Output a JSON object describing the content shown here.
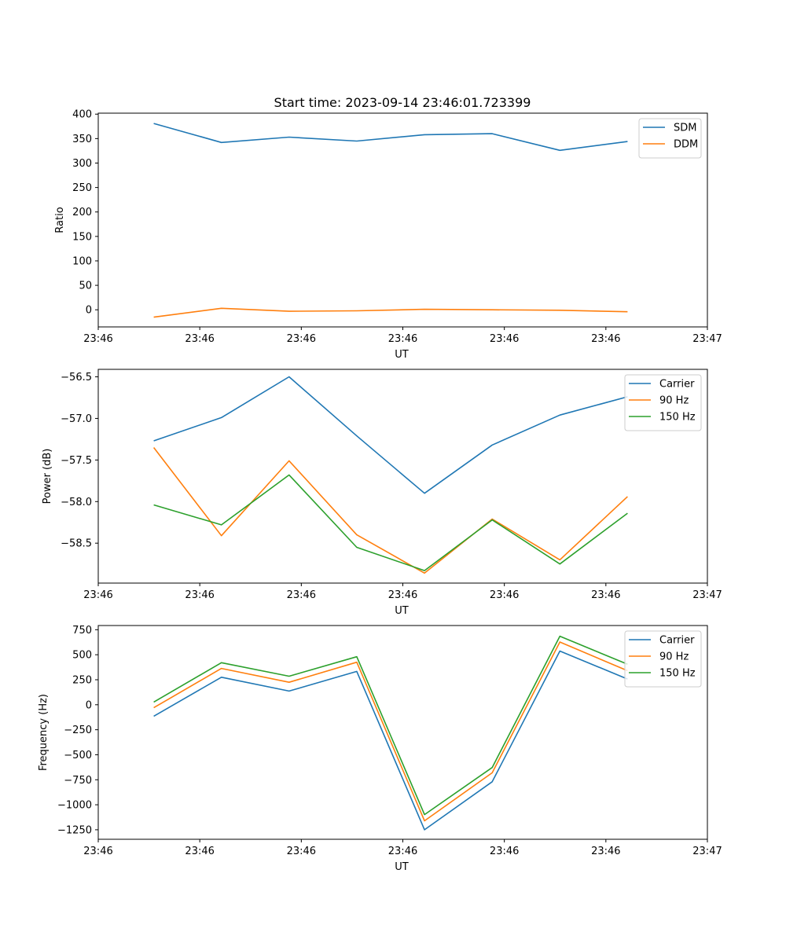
{
  "figure": {
    "title": "Start time: 2023-09-14 23:46:01.723399"
  },
  "chart_data": [
    {
      "type": "line",
      "xlabel": "UT",
      "ylabel": "Ratio",
      "x": [
        1,
        2,
        3,
        4,
        5,
        6,
        7,
        8
      ],
      "xlim": [
        0.18,
        9.18
      ],
      "xticks": [
        0.18,
        1.68,
        3.18,
        4.68,
        6.18,
        7.68,
        9.18
      ],
      "xtick_labels": [
        "23:46",
        "23:46",
        "23:46",
        "23:46",
        "23:46",
        "23:46",
        "23:47"
      ],
      "ylim": [
        -35,
        402
      ],
      "yticks": [
        0,
        50,
        100,
        150,
        200,
        250,
        300,
        350,
        400
      ],
      "ytick_labels": [
        "0",
        "50",
        "100",
        "150",
        "200",
        "250",
        "300",
        "350",
        "400"
      ],
      "legend_position": "top-right",
      "series": [
        {
          "name": "SDM",
          "color": "#1f77b4",
          "values": [
            381,
            342,
            353,
            345,
            358,
            360,
            326,
            344
          ]
        },
        {
          "name": "DDM",
          "color": "#ff7f0e",
          "values": [
            -15,
            3,
            -3,
            -2,
            1,
            0,
            -1,
            -4
          ]
        }
      ]
    },
    {
      "type": "line",
      "xlabel": "UT",
      "ylabel": "Power (dB)",
      "x": [
        1,
        2,
        3,
        4,
        5,
        6,
        7,
        8
      ],
      "xlim": [
        0.18,
        9.18
      ],
      "xticks": [
        0.18,
        1.68,
        3.18,
        4.68,
        6.18,
        7.68,
        9.18
      ],
      "xtick_labels": [
        "23:46",
        "23:46",
        "23:46",
        "23:46",
        "23:46",
        "23:46",
        "23:47"
      ],
      "ylim": [
        -58.98,
        -56.41
      ],
      "yticks": [
        -58.5,
        -58.0,
        -57.5,
        -57.0,
        -56.5
      ],
      "ytick_labels": [
        "−58.5",
        "−58.0",
        "−57.5",
        "−57.0",
        "−56.5"
      ],
      "legend_position": "top-right",
      "series": [
        {
          "name": "Carrier",
          "color": "#1f77b4",
          "values": [
            -57.27,
            -56.99,
            -56.5,
            -57.21,
            -57.9,
            -57.32,
            -56.96,
            -56.74
          ]
        },
        {
          "name": "90 Hz",
          "color": "#ff7f0e",
          "values": [
            -57.35,
            -58.41,
            -57.51,
            -58.4,
            -58.86,
            -58.21,
            -58.7,
            -57.94
          ]
        },
        {
          "name": "150 Hz",
          "color": "#2ca02c",
          "values": [
            -58.04,
            -58.28,
            -57.68,
            -58.55,
            -58.83,
            -58.22,
            -58.75,
            -58.14
          ]
        }
      ]
    },
    {
      "type": "line",
      "xlabel": "UT",
      "ylabel": "Frequency (Hz)",
      "x": [
        1,
        2,
        3,
        4,
        5,
        6,
        7,
        8
      ],
      "xlim": [
        0.18,
        9.18
      ],
      "xticks": [
        0.18,
        1.68,
        3.18,
        4.68,
        6.18,
        7.68,
        9.18
      ],
      "xtick_labels": [
        "23:46",
        "23:46",
        "23:46",
        "23:46",
        "23:46",
        "23:46",
        "23:47"
      ],
      "ylim": [
        -1345,
        792
      ],
      "yticks": [
        -1250,
        -1000,
        -750,
        -500,
        -250,
        0,
        250,
        500,
        750
      ],
      "ytick_labels": [
        "−1250",
        "−1000",
        "−750",
        "−500",
        "−250",
        "0",
        "250",
        "500",
        "750"
      ],
      "legend_position": "top-right",
      "series": [
        {
          "name": "Carrier",
          "color": "#1f77b4",
          "values": [
            -115,
            275,
            137,
            333,
            -1250,
            -770,
            537,
            257
          ]
        },
        {
          "name": "90 Hz",
          "color": "#ff7f0e",
          "values": [
            -30,
            363,
            225,
            425,
            -1160,
            -680,
            627,
            340
          ]
        },
        {
          "name": "150 Hz",
          "color": "#2ca02c",
          "values": [
            27,
            420,
            285,
            480,
            -1098,
            -628,
            685,
            405
          ]
        }
      ]
    }
  ]
}
